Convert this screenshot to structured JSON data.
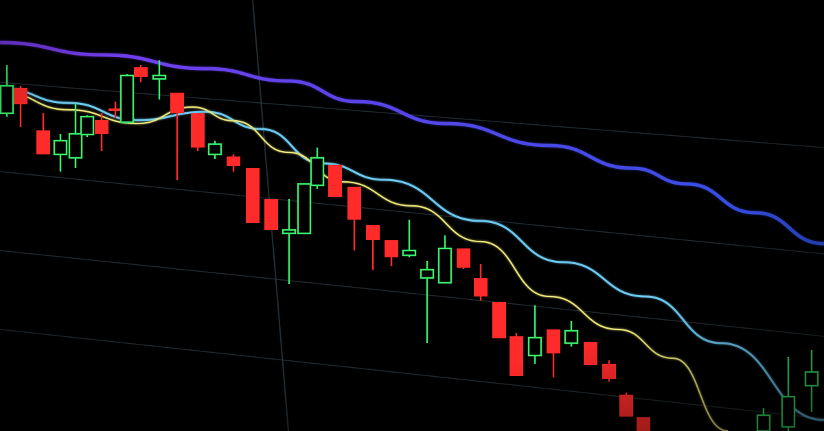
{
  "colors": {
    "background": "#000000",
    "bearish_candle": "#ff2a2a",
    "bullish_candle": "#39e86a",
    "grid": "#3a4a55",
    "slow_average_start": "#7b3cf0",
    "slow_average_end": "#2f4fe0",
    "medium_average": "#6cc7ee",
    "fast_average": "#e8e27a"
  }
}
